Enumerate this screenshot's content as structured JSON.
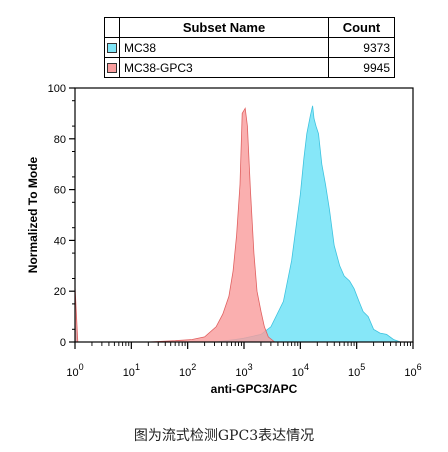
{
  "legend": {
    "header_name": "Subset Name",
    "header_count": "Count",
    "rows": [
      {
        "name": "MC38",
        "count": "9373",
        "color": "#7fe6f8"
      },
      {
        "name": "MC38-GPC3",
        "count": "9945",
        "color": "#f99e9e"
      }
    ]
  },
  "caption": "图为流式检测GPC3表达情况",
  "chart_data": {
    "type": "area",
    "xlabel": "anti-GPC3/APC",
    "ylabel": "Normalized To Mode",
    "x_scale": "log",
    "xlim": [
      1,
      1000000
    ],
    "ylim": [
      0,
      100
    ],
    "x_ticks": [
      {
        "base": "10",
        "exp": "0"
      },
      {
        "base": "10",
        "exp": "1"
      },
      {
        "base": "10",
        "exp": "2"
      },
      {
        "base": "10",
        "exp": "3"
      },
      {
        "base": "10",
        "exp": "4"
      },
      {
        "base": "10",
        "exp": "5"
      },
      {
        "base": "10",
        "exp": "6"
      }
    ],
    "y_ticks": [
      "0",
      "20",
      "40",
      "60",
      "80",
      "100"
    ],
    "series": [
      {
        "name": "MC38",
        "color": "#7fe6f8",
        "stroke": "#3ec3df",
        "x": [
          1,
          1.12,
          300,
          700,
          1000,
          2000,
          3000,
          5000,
          7000,
          10000,
          11500,
          13000,
          15000,
          16500,
          17500,
          19000,
          21000,
          24000,
          28000,
          33000,
          40000,
          50000,
          60000,
          75000,
          90000,
          110000,
          130000,
          160000,
          200000,
          260000,
          340000,
          450000,
          600000
        ],
        "y": [
          7,
          0,
          0,
          1,
          1.5,
          3,
          6,
          16,
          32,
          58,
          72,
          82,
          89,
          93,
          88,
          85,
          82,
          70,
          62,
          52,
          38,
          30,
          26,
          24,
          21,
          16,
          12,
          10,
          5,
          3.5,
          3,
          1,
          0
        ]
      },
      {
        "name": "MC38-GPC3",
        "color": "#f99e9e",
        "stroke": "#e06060",
        "x": [
          1,
          1.12,
          20,
          60,
          120,
          200,
          320,
          420,
          540,
          640,
          740,
          850,
          930,
          1050,
          1150,
          1300,
          1500,
          1700,
          2000,
          2300,
          2700,
          3500
        ],
        "y": [
          22,
          0,
          0,
          0.5,
          1,
          2,
          6,
          11,
          18,
          28,
          42,
          62,
          90,
          92,
          85,
          60,
          35,
          20,
          12,
          6,
          2,
          0
        ]
      }
    ]
  }
}
